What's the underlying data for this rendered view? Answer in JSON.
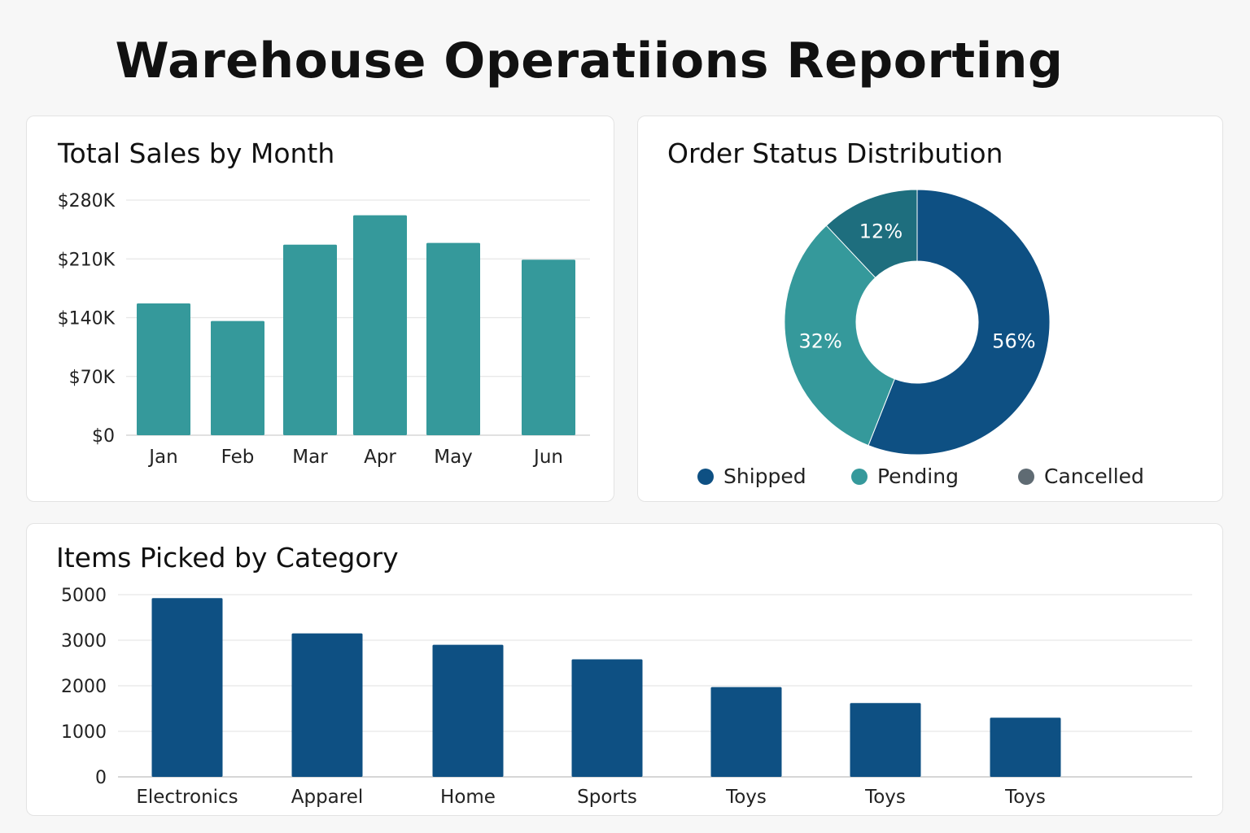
{
  "page": {
    "title": "Warehouse Operatiions Reporting"
  },
  "chart_data": [
    {
      "id": "sales",
      "type": "bar",
      "title": "Total Sales by Month",
      "categories": [
        "Jan",
        "Feb",
        "Mar",
        "Apr",
        "May",
        "Jun"
      ],
      "values": [
        157000,
        136000,
        227000,
        262000,
        229000,
        209000
      ],
      "ylim": [
        0,
        280000
      ],
      "yticks": [
        0,
        70000,
        140000,
        210000,
        280000
      ],
      "ytick_labels": [
        "$0",
        "$70K",
        "$140K",
        "$210K",
        "$280K"
      ],
      "xlabel": "",
      "ylabel": "",
      "grid": true,
      "color": "#35999b"
    },
    {
      "id": "status",
      "type": "pie",
      "title": "Order Status Distribution",
      "labels": [
        "Shipped",
        "Pending",
        "Cancelled"
      ],
      "values": [
        56,
        32,
        12
      ],
      "value_labels": [
        "56%",
        "32%",
        "12%"
      ],
      "colors": [
        "#0e5083",
        "#35999b",
        "#1e6e7e"
      ],
      "legend_colors": [
        "#0e5083",
        "#35999b",
        "#5f6b73"
      ],
      "legend": "bottom",
      "donut": true
    },
    {
      "id": "picked",
      "type": "bar",
      "title": "Items Picked by Category",
      "categories": [
        "Electronics",
        "Apparel",
        "Home",
        "Sports",
        "Toys",
        "Toys",
        "Toys"
      ],
      "values": [
        4850,
        3300,
        2900,
        2580,
        1970,
        1620,
        1300
      ],
      "yticks": [
        0,
        1000,
        2000,
        3000,
        5000
      ],
      "ytick_labels": [
        "0",
        "1000",
        "2000",
        "3000",
        "5000"
      ],
      "xlabel": "",
      "ylabel": "",
      "grid": true,
      "color": "#0e5083"
    }
  ]
}
